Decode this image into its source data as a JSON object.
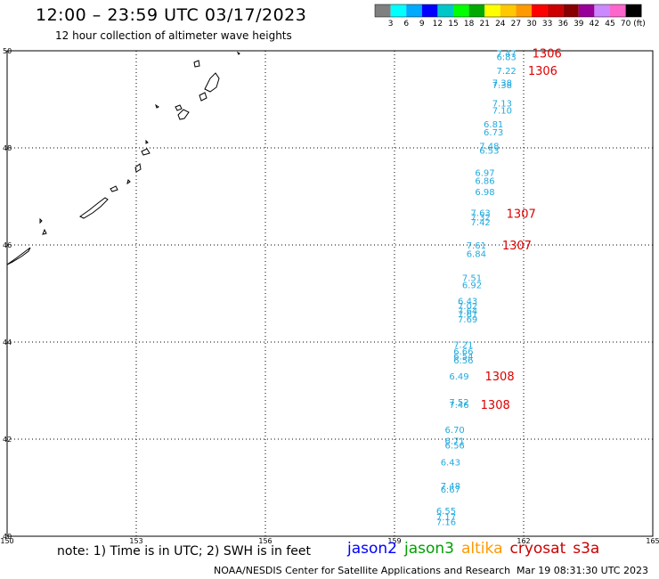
{
  "header": {
    "title": "12:00 – 23:59 UTC 03/17/2023",
    "subtitle": "12 hour collection of altimeter wave heights"
  },
  "footer": {
    "note": "note: 1) Time is in UTC; 2) SWH is in feet",
    "credit": "NOAA/NESDIS Center for Satellite Applications and Research",
    "timestamp": "Mar 19 08:31:30 UTC 2023",
    "missions": [
      {
        "name": "jason2",
        "color": "#0000ff"
      },
      {
        "name": "jason3",
        "color": "#00a000"
      },
      {
        "name": "altika",
        "color": "#ff9900"
      },
      {
        "name": "cryosat",
        "color": "#cc0000"
      },
      {
        "name": "s3a",
        "color": "#cc0000"
      }
    ]
  },
  "colorbar": {
    "unit": "(ft)",
    "ticks": [
      "3",
      "6",
      "9",
      "12",
      "15",
      "18",
      "21",
      "24",
      "27",
      "30",
      "33",
      "36",
      "39",
      "42",
      "45",
      "70"
    ],
    "colors": [
      "#808080",
      "#00ffff",
      "#00aaff",
      "#0000ff",
      "#00c8c8",
      "#00ff00",
      "#00aa00",
      "#ffff00",
      "#ffc800",
      "#ff9900",
      "#ff0000",
      "#cc0000",
      "#880000",
      "#990099",
      "#cc88ff",
      "#ff66cc",
      "#000000"
    ]
  },
  "chart_data": {
    "type": "scatter",
    "title": "12:00 – 23:59 UTC 03/17/2023",
    "xlim": [
      150,
      165
    ],
    "ylim": [
      40,
      50
    ],
    "xticks": [
      "150",
      "153",
      "156",
      "159",
      "162",
      "165"
    ],
    "yticks": [
      "40",
      "42",
      "44",
      "46",
      "48",
      "50"
    ],
    "grid": true,
    "series": [
      {
        "color": "#22aadd",
        "points": [
          {
            "x": 161.6,
            "y": 49.95,
            "v": "7.47"
          },
          {
            "x": 161.6,
            "y": 49.88,
            "v": "6.83"
          },
          {
            "x": 161.6,
            "y": 49.6,
            "v": "7.22"
          },
          {
            "x": 161.5,
            "y": 49.35,
            "v": "7.38"
          },
          {
            "x": 161.5,
            "y": 49.3,
            "v": "7.38"
          },
          {
            "x": 161.5,
            "y": 48.93,
            "v": "7.13"
          },
          {
            "x": 161.5,
            "y": 48.78,
            "v": "7.10"
          },
          {
            "x": 161.3,
            "y": 48.5,
            "v": "6.81"
          },
          {
            "x": 161.3,
            "y": 48.33,
            "v": "6.73"
          },
          {
            "x": 161.2,
            "y": 48.05,
            "v": "7.48"
          },
          {
            "x": 161.2,
            "y": 47.95,
            "v": "6.53"
          },
          {
            "x": 161.1,
            "y": 47.5,
            "v": "6.97"
          },
          {
            "x": 161.1,
            "y": 47.33,
            "v": "6.86"
          },
          {
            "x": 161.1,
            "y": 47.1,
            "v": "6.98"
          },
          {
            "x": 161.0,
            "y": 46.67,
            "v": "7.63"
          },
          {
            "x": 161.0,
            "y": 46.58,
            "v": "7.32"
          },
          {
            "x": 161.0,
            "y": 46.48,
            "v": "7.42"
          },
          {
            "x": 160.9,
            "y": 46.0,
            "v": "7.61"
          },
          {
            "x": 160.9,
            "y": 45.83,
            "v": "6.84"
          },
          {
            "x": 160.8,
            "y": 45.33,
            "v": "7.51"
          },
          {
            "x": 160.8,
            "y": 45.18,
            "v": "6.92"
          },
          {
            "x": 160.7,
            "y": 44.85,
            "v": "6.43"
          },
          {
            "x": 160.7,
            "y": 44.75,
            "v": "7.02"
          },
          {
            "x": 160.7,
            "y": 44.65,
            "v": "7.64"
          },
          {
            "x": 160.7,
            "y": 44.58,
            "v": "7.61"
          },
          {
            "x": 160.7,
            "y": 44.48,
            "v": "7.69"
          },
          {
            "x": 160.6,
            "y": 43.95,
            "v": "7.21"
          },
          {
            "x": 160.6,
            "y": 43.82,
            "v": "6.66"
          },
          {
            "x": 160.6,
            "y": 43.72,
            "v": "6.54"
          },
          {
            "x": 160.6,
            "y": 43.63,
            "v": "6.56"
          },
          {
            "x": 160.5,
            "y": 43.3,
            "v": "6.49"
          },
          {
            "x": 160.5,
            "y": 42.77,
            "v": "7.52"
          },
          {
            "x": 160.5,
            "y": 42.72,
            "v": "7.46"
          },
          {
            "x": 160.4,
            "y": 42.2,
            "v": "6.70"
          },
          {
            "x": 160.4,
            "y": 41.97,
            "v": "6.71"
          },
          {
            "x": 160.4,
            "y": 41.88,
            "v": "6.56"
          },
          {
            "x": 160.3,
            "y": 41.53,
            "v": "6.43"
          },
          {
            "x": 160.3,
            "y": 41.05,
            "v": "7.48"
          },
          {
            "x": 160.3,
            "y": 40.97,
            "v": "6.67"
          },
          {
            "x": 160.2,
            "y": 40.53,
            "v": "6.55"
          },
          {
            "x": 160.2,
            "y": 40.4,
            "v": "7.17"
          },
          {
            "x": 160.2,
            "y": 40.3,
            "v": "7.16"
          }
        ]
      }
    ],
    "annotations": [
      {
        "x": 162.2,
        "y": 49.95,
        "text": "1306",
        "color": "#dd0000"
      },
      {
        "x": 162.1,
        "y": 49.6,
        "text": "1306",
        "color": "#dd0000"
      },
      {
        "x": 161.6,
        "y": 46.65,
        "text": "1307",
        "color": "#dd0000"
      },
      {
        "x": 161.5,
        "y": 46.0,
        "text": "1307",
        "color": "#dd0000"
      },
      {
        "x": 161.1,
        "y": 43.3,
        "text": "1308",
        "color": "#dd0000"
      },
      {
        "x": 161.0,
        "y": 42.72,
        "text": "1308",
        "color": "#dd0000"
      }
    ]
  }
}
